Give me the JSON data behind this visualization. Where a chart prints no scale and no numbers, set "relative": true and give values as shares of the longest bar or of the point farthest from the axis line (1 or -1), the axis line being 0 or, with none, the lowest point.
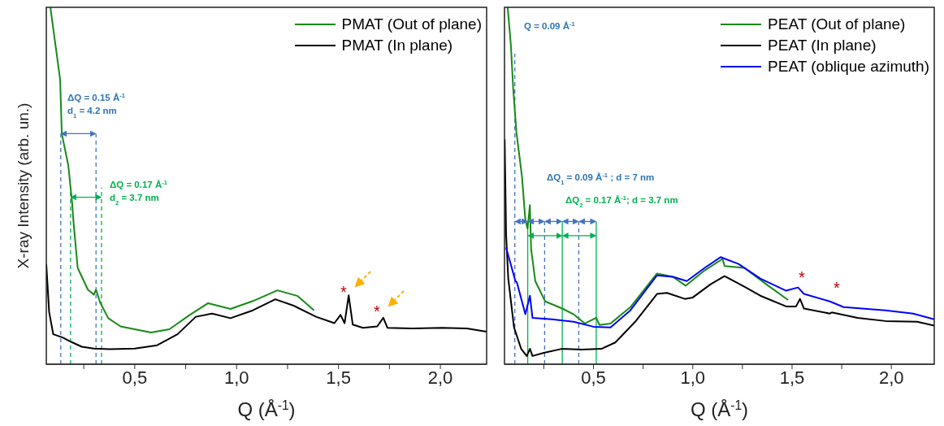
{
  "chart_data": [
    {
      "type": "line",
      "relative": true,
      "xlabel": "Q (Å$^{-1}$)",
      "ylabel": "X-ray Intensity (arb. un.)",
      "legend": "top right",
      "xlim": [
        0.066,
        2.227
      ],
      "xticks": [
        {
          "value": 0.25,
          "label": null
        },
        {
          "value": 0.5,
          "label": "0,5"
        },
        {
          "value": 0.75,
          "label": null
        },
        {
          "value": 1.0,
          "label": "1,0"
        },
        {
          "value": 1.25,
          "label": null
        },
        {
          "value": 1.5,
          "label": "1,5"
        },
        {
          "value": 1.75,
          "label": null
        },
        {
          "value": 2.0,
          "label": "2,0"
        }
      ],
      "series": [
        {
          "name": "PMAT (Out of plane)",
          "color": "#178a17",
          "x": [
            0.086,
            0.134,
            0.142,
            0.174,
            0.193,
            0.2,
            0.22,
            0.27,
            0.3,
            0.31,
            0.33,
            0.37,
            0.43,
            0.5,
            0.58,
            0.67,
            0.77,
            0.86,
            0.97,
            1.08,
            1.2,
            1.3,
            1.38
          ],
          "values": [
            1.0,
            0.797,
            0.646,
            0.557,
            0.45,
            0.395,
            0.27,
            0.209,
            0.195,
            0.209,
            0.173,
            0.129,
            0.106,
            0.098,
            0.089,
            0.098,
            0.138,
            0.171,
            0.155,
            0.177,
            0.207,
            0.191,
            0.151
          ]
        },
        {
          "name": "PMAT (In plane)",
          "color": "#000000",
          "x": [
            0.066,
            0.08,
            0.1,
            0.146,
            0.19,
            0.24,
            0.3,
            0.38,
            0.5,
            0.61,
            0.71,
            0.8,
            0.88,
            0.97,
            1.08,
            1.19,
            1.28,
            1.39,
            1.48,
            1.51,
            1.53,
            1.55,
            1.57,
            1.62,
            1.69,
            1.72,
            1.74,
            1.86,
            2.01,
            2.13,
            2.227
          ],
          "values": [
            0.28,
            0.146,
            0.084,
            0.075,
            0.062,
            0.049,
            0.044,
            0.042,
            0.044,
            0.053,
            0.084,
            0.133,
            0.142,
            0.129,
            0.151,
            0.182,
            0.164,
            0.133,
            0.115,
            0.138,
            0.115,
            0.193,
            0.111,
            0.102,
            0.106,
            0.13,
            0.102,
            0.1,
            0.102,
            0.1,
            0.091
          ]
        }
      ],
      "ref_lines": [
        {
          "axis": "x",
          "value": 0.137,
          "color": "#4472c4",
          "line_style": "dashed"
        },
        {
          "axis": "x",
          "value": 0.31,
          "color": "#4472c4",
          "line_style": "dashed"
        },
        {
          "axis": "x",
          "value": 0.185,
          "color": "#00b050",
          "line_style": "dashed"
        },
        {
          "axis": "x",
          "value": 0.337,
          "color": "#00b050",
          "line_style": "dashed"
        }
      ],
      "annotations": [
        "ΔQ = 0.15 Å$^{-1}$",
        "d$_{1}$ = 4.2 nm",
        "ΔQ = 0.17 Å$^{-1}$",
        "d$_{2}$ = 3.7 nm",
        "*",
        "*"
      ]
    },
    {
      "type": "line",
      "relative": true,
      "xlabel": "Q (Å$^{-1}$)",
      "legend": "top right",
      "xlim": [
        0.052,
        2.216
      ],
      "xticks": [
        {
          "value": 0.25,
          "label": null
        },
        {
          "value": 0.5,
          "label": "0,5"
        },
        {
          "value": 0.75,
          "label": null
        },
        {
          "value": 1.0,
          "label": "1,0"
        },
        {
          "value": 1.25,
          "label": null
        },
        {
          "value": 1.5,
          "label": "1,5"
        },
        {
          "value": 1.75,
          "label": null
        },
        {
          "value": 2.0,
          "label": "2,0"
        }
      ],
      "series": [
        {
          "name": "PEAT (Out of plane)",
          "color": "#178a17",
          "x": [
            0.068,
            0.084,
            0.096,
            0.112,
            0.14,
            0.157,
            0.168,
            0.18,
            0.186,
            0.207,
            0.257,
            0.343,
            0.4,
            0.457,
            0.514,
            0.53,
            0.586,
            0.686,
            0.82,
            0.9,
            0.964,
            1.06,
            1.15,
            1.16,
            1.26,
            1.37,
            1.48
          ],
          "values": [
            1.0,
            0.895,
            0.771,
            0.65,
            0.526,
            0.405,
            0.38,
            0.446,
            0.323,
            0.233,
            0.176,
            0.156,
            0.14,
            0.114,
            0.13,
            0.11,
            0.114,
            0.16,
            0.254,
            0.245,
            0.22,
            0.263,
            0.295,
            0.275,
            0.27,
            0.224,
            0.18
          ]
        },
        {
          "name": "PEAT (In plane)",
          "color": "#000000",
          "x": [
            0.053,
            0.06,
            0.071,
            0.1,
            0.136,
            0.164,
            0.18,
            0.193,
            0.25,
            0.34,
            0.44,
            0.54,
            0.61,
            0.71,
            0.82,
            0.87,
            0.96,
            1.0,
            1.09,
            1.16,
            1.26,
            1.34,
            1.47,
            1.52,
            1.54,
            1.56,
            1.69,
            1.7,
            1.83,
            1.97,
            2.13,
            2.216
          ],
          "values": [
            0.63,
            0.364,
            0.24,
            0.103,
            0.043,
            0.023,
            0.043,
            0.023,
            0.032,
            0.043,
            0.041,
            0.043,
            0.061,
            0.119,
            0.197,
            0.2,
            0.183,
            0.187,
            0.224,
            0.247,
            0.217,
            0.192,
            0.162,
            0.162,
            0.183,
            0.156,
            0.142,
            0.145,
            0.13,
            0.121,
            0.119,
            0.108
          ]
        },
        {
          "name": "PEAT (oblique azimuth)",
          "color": "#0000ff",
          "x": [
            0.06,
            0.107,
            0.114,
            0.157,
            0.18,
            0.193,
            0.29,
            0.4,
            0.5,
            0.586,
            0.686,
            0.82,
            0.9,
            0.97,
            1.06,
            1.14,
            1.23,
            1.34,
            1.47,
            1.53,
            1.56,
            1.69,
            1.76,
            1.97,
            2.11,
            2.216
          ],
          "values": [
            0.327,
            0.233,
            0.23,
            0.14,
            0.192,
            0.13,
            0.126,
            0.119,
            0.105,
            0.103,
            0.151,
            0.249,
            0.245,
            0.233,
            0.27,
            0.3,
            0.281,
            0.24,
            0.206,
            0.215,
            0.197,
            0.176,
            0.16,
            0.151,
            0.142,
            0.126
          ]
        }
      ],
      "ref_lines": [
        {
          "axis": "x",
          "value": 0.104,
          "color": "#4472c4",
          "line_style": "dashed"
        },
        {
          "axis": "x",
          "value": 0.254,
          "color": "#4472c4",
          "line_style": "dashed"
        },
        {
          "axis": "x",
          "value": 0.426,
          "color": "#4472c4",
          "line_style": "dashed"
        },
        {
          "axis": "x",
          "value": 0.169,
          "color": "#00b050",
          "line_style": "solid"
        },
        {
          "axis": "x",
          "value": 0.343,
          "color": "#00b050",
          "line_style": "solid"
        },
        {
          "axis": "x",
          "value": 0.514,
          "color": "#00b050",
          "line_style": "solid"
        }
      ],
      "annotations": [
        "Q = 0.09 Å$^{-1}$",
        "ΔQ$_{1}$ = 0.09 Å$^{-1}$ ; d = 7 nm",
        "ΔQ$_{2}$ = 0.17 Å$^{-1}$; d = 3.7 nm",
        "*",
        "*"
      ]
    }
  ]
}
